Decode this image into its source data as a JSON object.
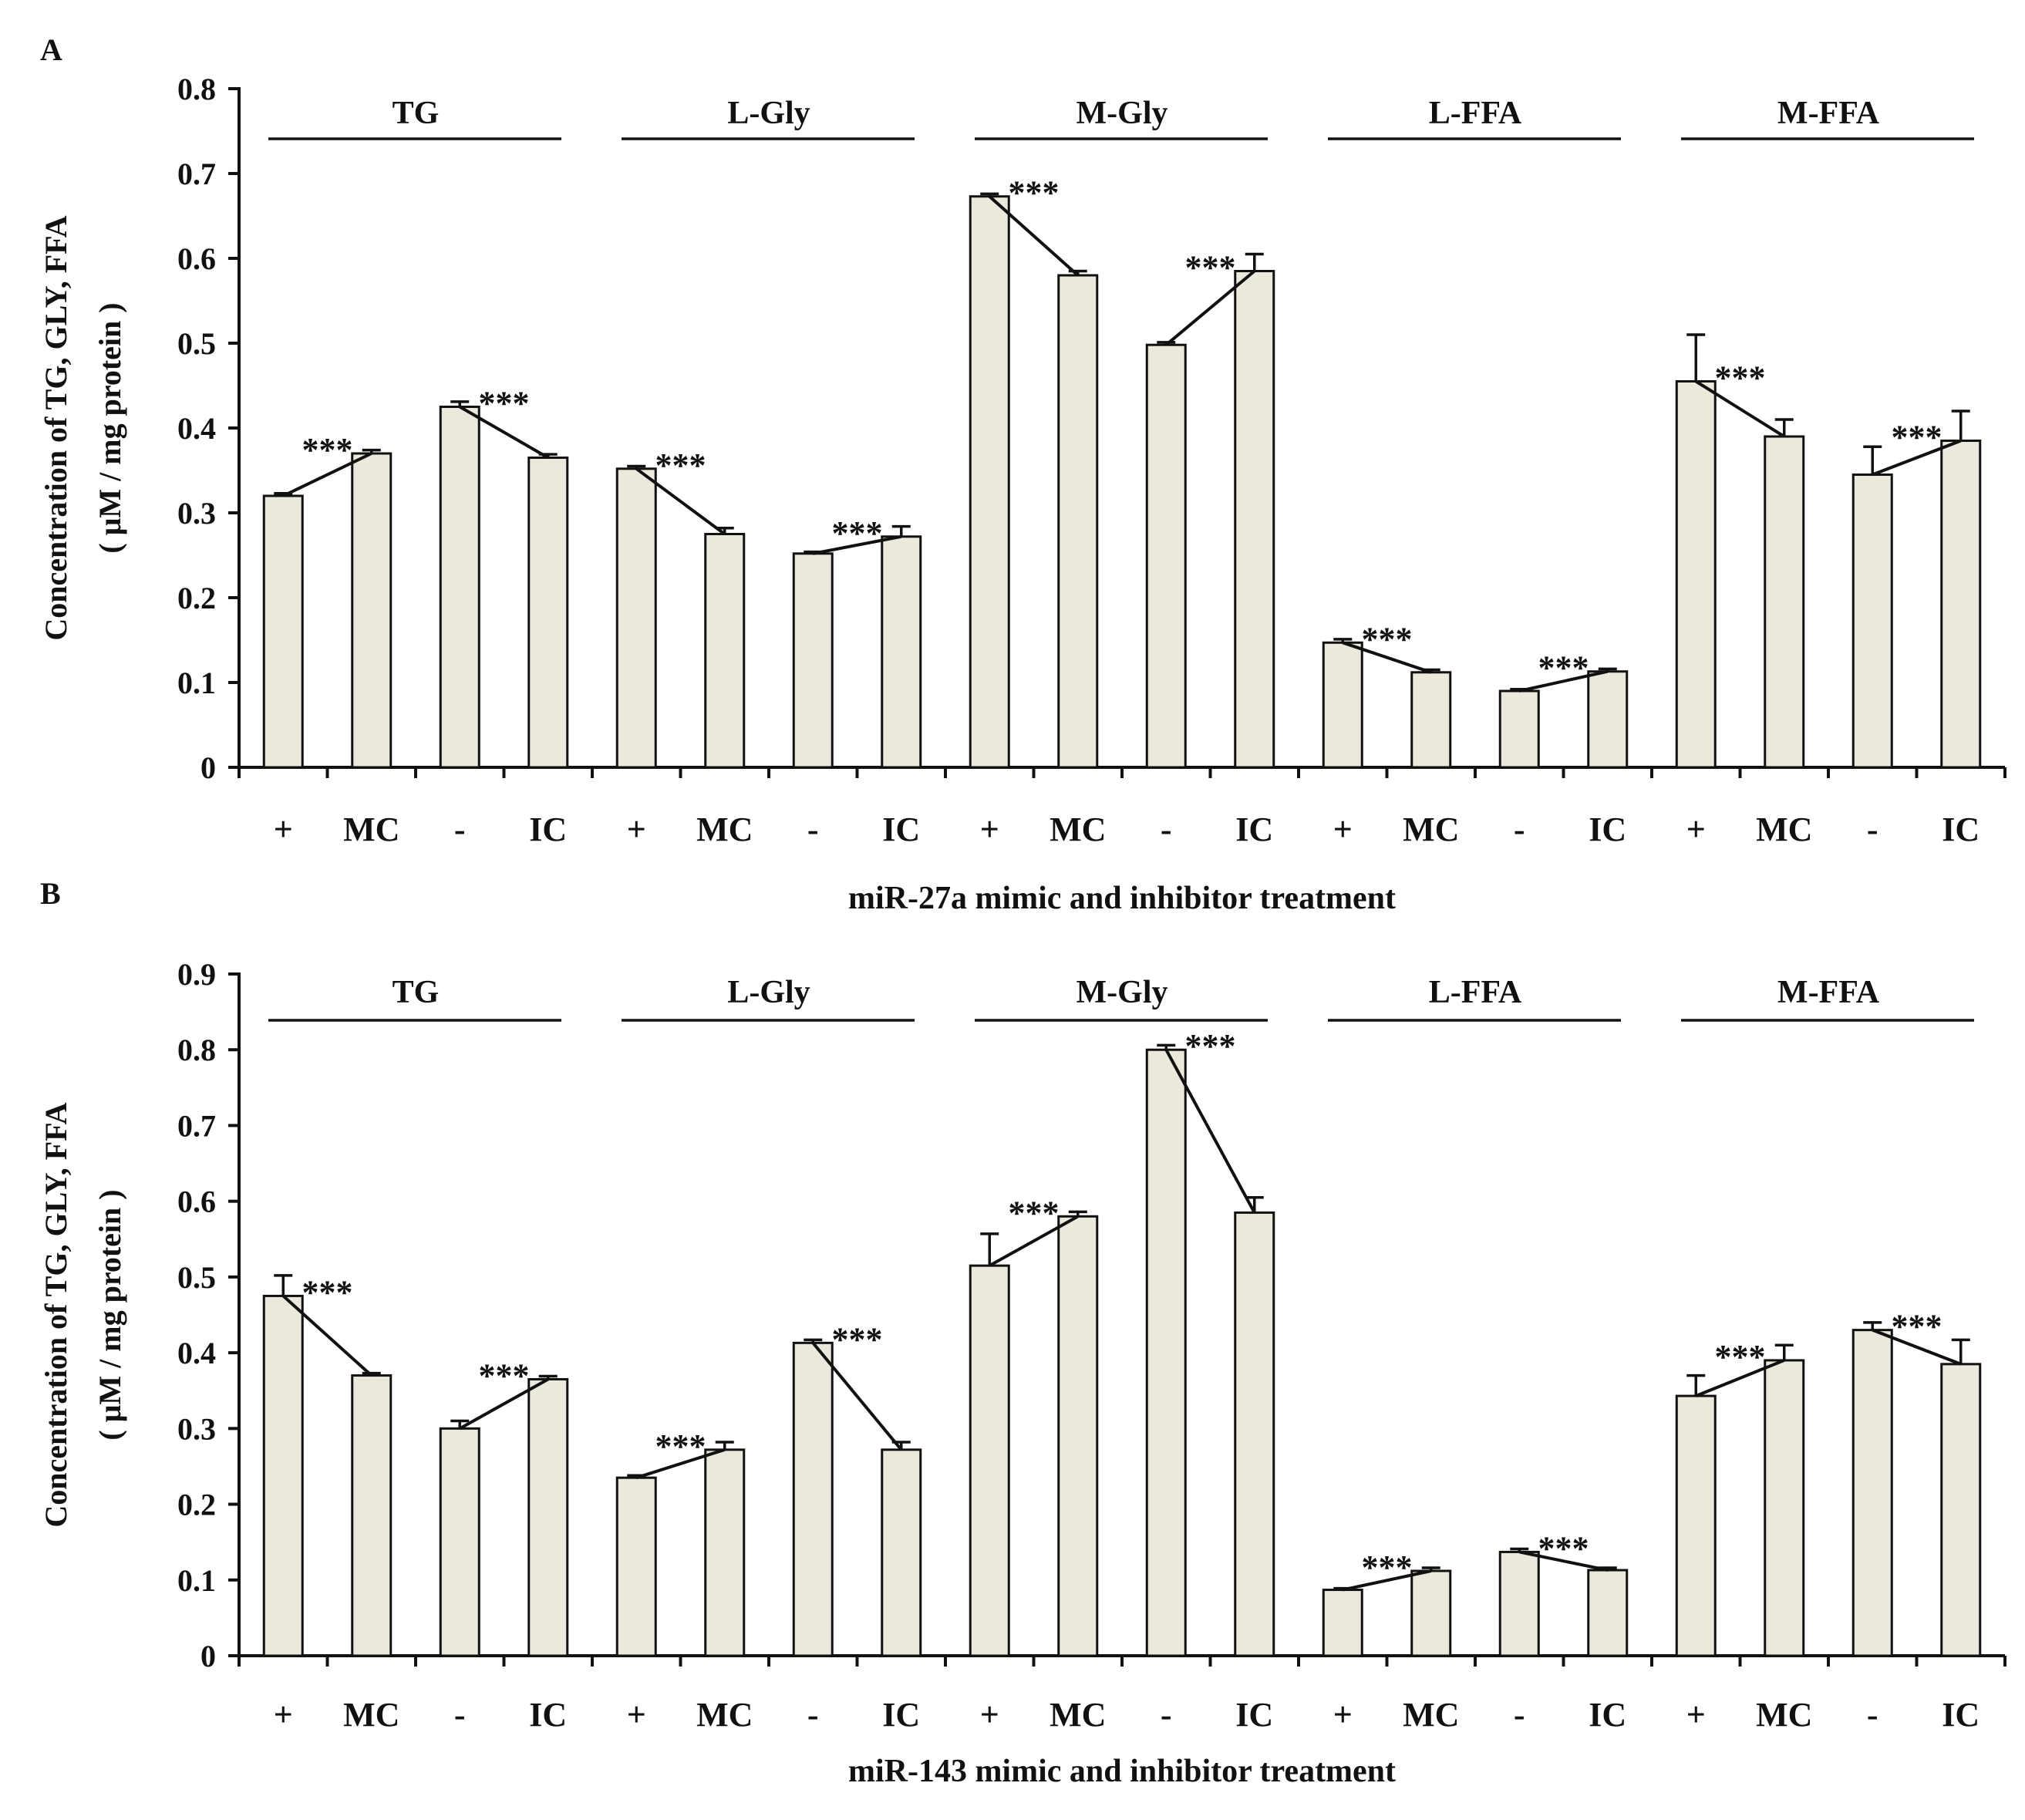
{
  "colors": {
    "bar_fill": "#ebe8dc",
    "bar_stroke": "#111111",
    "axis": "#111111",
    "background": "#ffffff"
  },
  "chart_data": [
    {
      "panel_label": "A",
      "type": "bar",
      "xlabel": "miR-27a mimic and inhibitor treatment",
      "ylabel_line1": "Concentration of  TG, GLY, FFA",
      "ylabel_line2": "( μM / mg protein )",
      "ylim": [
        0,
        0.8
      ],
      "yticks": [
        "0",
        "0.1",
        "0.2",
        "0.3",
        "0.4",
        "0.5",
        "0.6",
        "0.7",
        "0.8"
      ],
      "significance": "***",
      "groups": [
        {
          "name": "TG",
          "categories": [
            "+",
            "MC",
            "-",
            "IC"
          ],
          "values": [
            0.32,
            0.37,
            0.425,
            0.365
          ],
          "errors": [
            0.003,
            0.004,
            0.006,
            0.004
          ]
        },
        {
          "name": "L-Gly",
          "categories": [
            "+",
            "MC",
            "-",
            "IC"
          ],
          "values": [
            0.352,
            0.275,
            0.252,
            0.272
          ],
          "errors": [
            0.003,
            0.007,
            0.002,
            0.012
          ]
        },
        {
          "name": "M-Gly",
          "categories": [
            "+",
            "MC",
            "-",
            "IC"
          ],
          "values": [
            0.673,
            0.58,
            0.498,
            0.585
          ],
          "errors": [
            0.003,
            0.005,
            0.003,
            0.02
          ]
        },
        {
          "name": "L-FFA",
          "categories": [
            "+",
            "MC",
            "-",
            "IC"
          ],
          "values": [
            0.147,
            0.112,
            0.09,
            0.113
          ],
          "errors": [
            0.004,
            0.003,
            0.002,
            0.003
          ]
        },
        {
          "name": "M-FFA",
          "categories": [
            "+",
            "MC",
            "-",
            "IC"
          ],
          "values": [
            0.455,
            0.39,
            0.345,
            0.385
          ],
          "errors": [
            0.055,
            0.02,
            0.033,
            0.035
          ]
        }
      ]
    },
    {
      "panel_label": "B",
      "type": "bar",
      "xlabel": "miR-143 mimic and inhibitor treatment",
      "ylabel_line1": "Concentration of  TG, GLY, FFA",
      "ylabel_line2": "( μM / mg protein )",
      "ylim": [
        0,
        0.9
      ],
      "yticks": [
        "0",
        "0.1",
        "0.2",
        "0.3",
        "0.4",
        "0.5",
        "0.6",
        "0.7",
        "0.8",
        "0.9"
      ],
      "significance": "***",
      "groups": [
        {
          "name": "TG",
          "categories": [
            "+",
            "MC",
            "-",
            "IC"
          ],
          "values": [
            0.475,
            0.37,
            0.3,
            0.365
          ],
          "errors": [
            0.027,
            0.003,
            0.01,
            0.004
          ]
        },
        {
          "name": "L-Gly",
          "categories": [
            "+",
            "MC",
            "-",
            "IC"
          ],
          "values": [
            0.235,
            0.272,
            0.413,
            0.272
          ],
          "errors": [
            0.003,
            0.01,
            0.004,
            0.01
          ]
        },
        {
          "name": "M-Gly",
          "categories": [
            "+",
            "MC",
            "-",
            "IC"
          ],
          "values": [
            0.515,
            0.58,
            0.8,
            0.585
          ],
          "errors": [
            0.042,
            0.006,
            0.006,
            0.02
          ]
        },
        {
          "name": "L-FFA",
          "categories": [
            "+",
            "MC",
            "-",
            "IC"
          ],
          "values": [
            0.087,
            0.112,
            0.137,
            0.113
          ],
          "errors": [
            0.002,
            0.004,
            0.004,
            0.003
          ]
        },
        {
          "name": "M-FFA",
          "categories": [
            "+",
            "MC",
            "-",
            "IC"
          ],
          "values": [
            0.343,
            0.39,
            0.43,
            0.385
          ],
          "errors": [
            0.027,
            0.02,
            0.01,
            0.032
          ]
        }
      ]
    }
  ]
}
